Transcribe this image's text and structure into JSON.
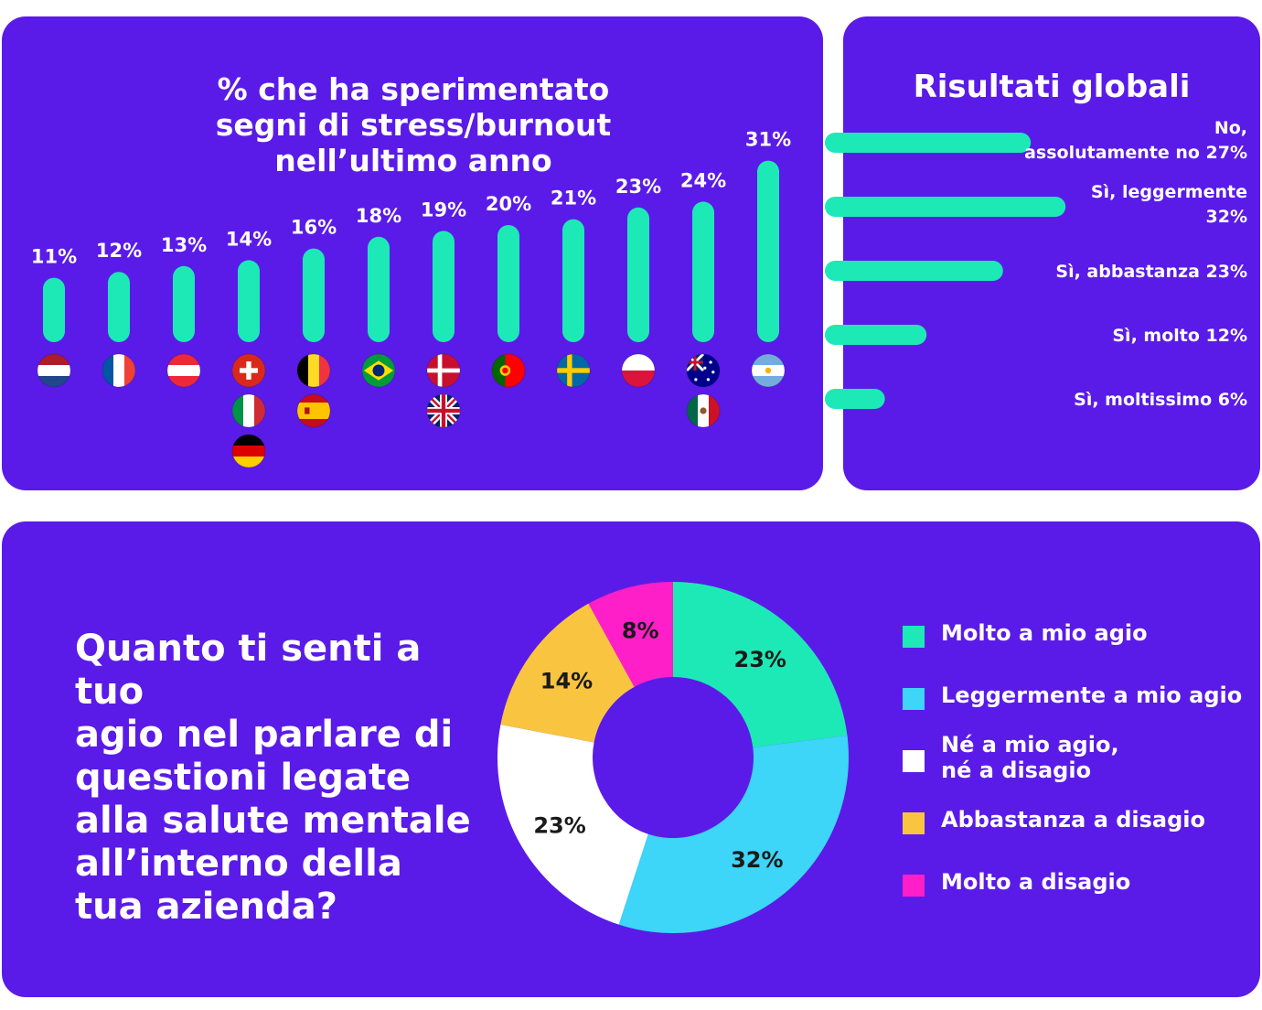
{
  "colors": {
    "panel_bg": "#5a1be8",
    "bar": "#1de9b6",
    "text": "#ffffff",
    "hole": "#5a1be8"
  },
  "countries_panel": {
    "title_lines": [
      "% che ha sperimentato",
      "segni di stress/burnout",
      "nell’ultimo anno"
    ]
  },
  "global_panel": {
    "title": "Risultati globali"
  },
  "comfort_panel": {
    "question_lines": [
      "Quanto ti senti a tuo",
      "agio nel parlare di",
      "questioni legate",
      "alla salute mentale",
      "all’interno della",
      "tua azienda?"
    ]
  },
  "chart_data": [
    {
      "type": "bar",
      "orientation": "vertical",
      "categories": [
        "netherlands-flag",
        "france-flag",
        "austria-flag",
        "switzerland-flag / italy-flag / germany-flag",
        "belgium-flag / spain-flag",
        "brazil-flag",
        "denmark-flag / uk-flag",
        "portugal-flag",
        "sweden-flag",
        "poland-flag",
        "australia-flag / mexico-flag",
        "argentina-flag"
      ],
      "values": [
        11,
        12,
        13,
        14,
        16,
        18,
        19,
        20,
        21,
        23,
        24,
        31
      ],
      "value_labels": [
        "11%",
        "12%",
        "13%",
        "14%",
        "16%",
        "18%",
        "19%",
        "20%",
        "21%",
        "23%",
        "24%",
        "31%"
      ],
      "flags": [
        [
          "netherlands"
        ],
        [
          "france"
        ],
        [
          "austria"
        ],
        [
          "switzerland",
          "italy",
          "germany"
        ],
        [
          "belgium",
          "spain"
        ],
        [
          "brazil"
        ],
        [
          "denmark",
          "uk"
        ],
        [
          "portugal"
        ],
        [
          "sweden"
        ],
        [
          "poland"
        ],
        [
          "australia",
          "mexico"
        ],
        [
          "argentina"
        ]
      ],
      "bar_color": "#1de9b6"
    },
    {
      "type": "bar",
      "orientation": "horizontal",
      "title": "Risultati globali",
      "categories": [
        [
          "No,",
          "assolutamente no 27%"
        ],
        [
          "Sì, leggermente",
          "32%"
        ],
        [
          "Sì, abbastanza 23%"
        ],
        [
          "Sì, molto 12%"
        ],
        [
          "Sì, moltissimo 6%"
        ]
      ],
      "values": [
        27,
        32,
        23,
        12,
        6
      ],
      "bar_color": "#1de9b6"
    },
    {
      "type": "pie",
      "style": "donut",
      "slices": [
        {
          "label": "Molto a mio agio",
          "value": 23,
          "value_label": "23%",
          "color": "#1de9b6"
        },
        {
          "label": "Leggermente a mio agio",
          "value": 32,
          "value_label": "32%",
          "color": "#3dd5f8"
        },
        {
          "label_lines": [
            "Né a mio agio,",
            "né a disagio"
          ],
          "value": 23,
          "value_label": "23%",
          "color": "#ffffff"
        },
        {
          "label": "Abbastanza a disagio",
          "value": 14,
          "value_label": "14%",
          "color": "#f9c440"
        },
        {
          "label": "Molto a disagio",
          "value": 8,
          "value_label": "8%",
          "color": "#ff1fc8"
        }
      ],
      "legend_placement": "right"
    }
  ]
}
